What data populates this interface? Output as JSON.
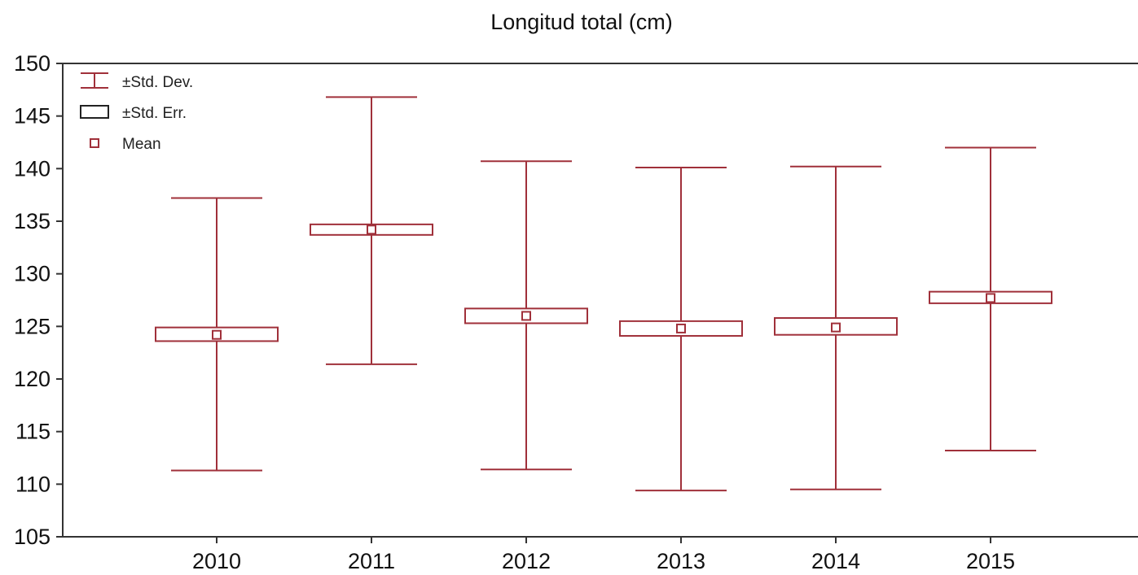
{
  "chart_data": {
    "type": "box",
    "title": "Longitud total (cm)",
    "categories": [
      "2010",
      "2011",
      "2012",
      "2013",
      "2014",
      "2015"
    ],
    "mean": [
      124.2,
      134.2,
      126.0,
      124.8,
      124.9,
      127.7
    ],
    "std_err_low": [
      123.6,
      133.7,
      125.3,
      124.1,
      124.2,
      127.2
    ],
    "std_err_high": [
      124.9,
      134.7,
      126.7,
      125.5,
      125.8,
      128.3
    ],
    "std_dev_low": [
      111.3,
      121.4,
      111.4,
      109.4,
      109.5,
      113.2
    ],
    "std_dev_high": [
      137.2,
      146.8,
      140.7,
      140.1,
      140.2,
      142.0
    ],
    "ylim": [
      105,
      150
    ],
    "yticks": [
      105,
      110,
      115,
      120,
      125,
      130,
      135,
      140,
      145,
      150
    ],
    "grid": false,
    "legend": {
      "position": "top-left",
      "std_dev_label": "±Std. Dev.",
      "std_err_label": "±Std. Err.",
      "mean_label": "Mean"
    },
    "colors": {
      "std_dev": "#a0303a",
      "std_err": "#222222",
      "mean": "#a0303a"
    }
  }
}
